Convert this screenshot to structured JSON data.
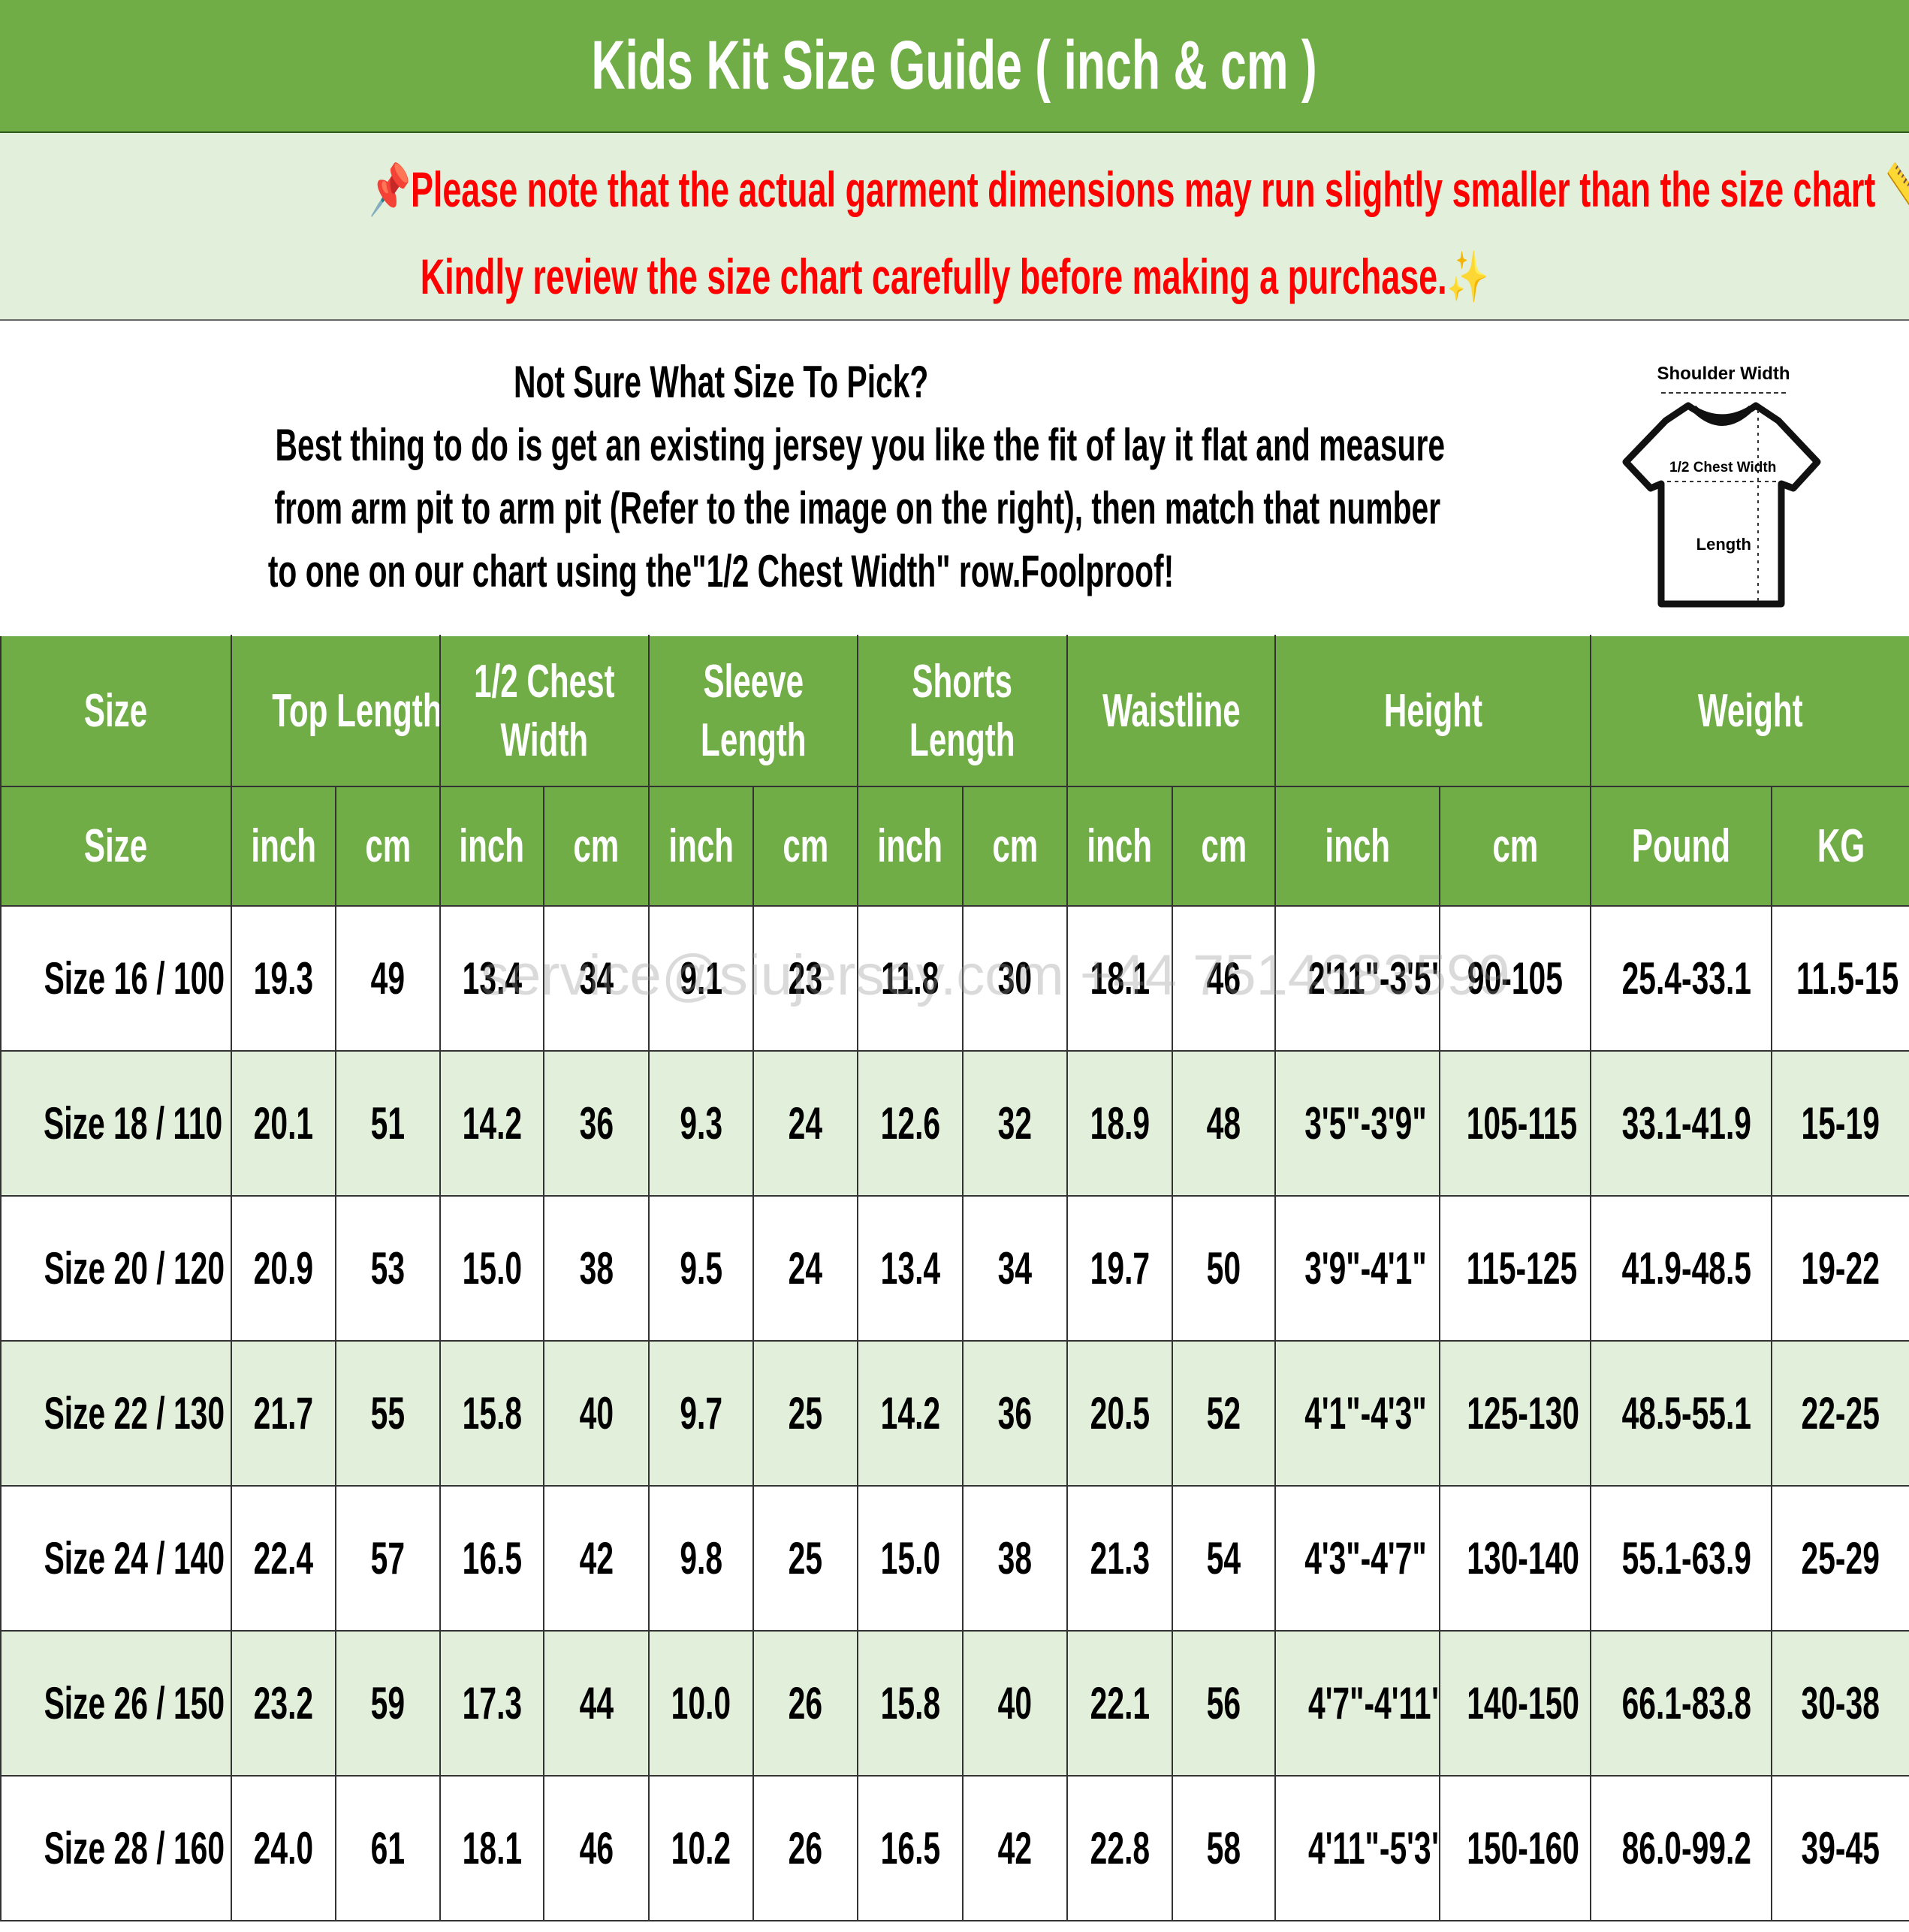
{
  "title": "Kids Kit Size Guide ( inch & cm )",
  "note": {
    "line1": "📌Please note that the actual garment dimensions may run slightly smaller than the size chart 📏.",
    "line2": "Kindly review the size chart carefully before making a purchase.✨",
    "color": "#ff0000"
  },
  "info": {
    "heading": "Not Sure What Size To Pick?",
    "line1": "Best thing to do is get an existing jersey you like the fit of lay it flat and measure",
    "line2": "from arm pit to arm pit (Refer to the image on the right), then match that number",
    "line3": "to one on our chart using the\"1/2 Chest Width\" row.Foolproof!"
  },
  "diagram": {
    "shoulder": "Shoulder Width",
    "chest": "1/2 Chest Width",
    "length": "Length"
  },
  "watermark": "service@siujersey.com   +44 7514683599",
  "table": {
    "groups": [
      "Size",
      "Top Length",
      "1/2 Chest|Width",
      "Sleeve|Length",
      "Shorts|Length",
      "Waistline",
      "Height",
      "Weight"
    ],
    "subheaders": [
      "Size",
      "inch",
      "cm",
      "inch",
      "cm",
      "inch",
      "cm",
      "inch",
      "cm",
      "inch",
      "cm",
      "inch",
      "cm",
      "Pound",
      "KG"
    ],
    "rows": [
      [
        "Size 16 / 100",
        "19.3",
        "49",
        "13.4",
        "34",
        "9.1",
        "23",
        "11.8",
        "30",
        "18.1",
        "46",
        "2'11\"-3'5\"",
        "90-105",
        "25.4-33.1",
        "11.5-15"
      ],
      [
        "Size 18 / 110",
        "20.1",
        "51",
        "14.2",
        "36",
        "9.3",
        "24",
        "12.6",
        "32",
        "18.9",
        "48",
        "3'5\"-3'9\"",
        "105-115",
        "33.1-41.9",
        "15-19"
      ],
      [
        "Size 20 / 120",
        "20.9",
        "53",
        "15.0",
        "38",
        "9.5",
        "24",
        "13.4",
        "34",
        "19.7",
        "50",
        "3'9\"-4'1\"",
        "115-125",
        "41.9-48.5",
        "19-22"
      ],
      [
        "Size 22 / 130",
        "21.7",
        "55",
        "15.8",
        "40",
        "9.7",
        "25",
        "14.2",
        "36",
        "20.5",
        "52",
        "4'1\"-4'3\"",
        "125-130",
        "48.5-55.1",
        "22-25"
      ],
      [
        "Size 24 / 140",
        "22.4",
        "57",
        "16.5",
        "42",
        "9.8",
        "25",
        "15.0",
        "38",
        "21.3",
        "54",
        "4'3\"-4'7\"",
        "130-140",
        "55.1-63.9",
        "25-29"
      ],
      [
        "Size 26 / 150",
        "23.2",
        "59",
        "17.3",
        "44",
        "10.0",
        "26",
        "15.8",
        "40",
        "22.1",
        "56",
        "4'7\"-4'11\"",
        "140-150",
        "66.1-83.8",
        "30-38"
      ],
      [
        "Size 28 / 160",
        "24.0",
        "61",
        "18.1",
        "46",
        "10.2",
        "26",
        "16.5",
        "42",
        "22.8",
        "58",
        "4'11\"-5'3\"",
        "150-160",
        "86.0-99.2",
        "39-45"
      ]
    ]
  },
  "colors": {
    "header_green": "#70ad47",
    "alt_row": "#e2efda"
  }
}
